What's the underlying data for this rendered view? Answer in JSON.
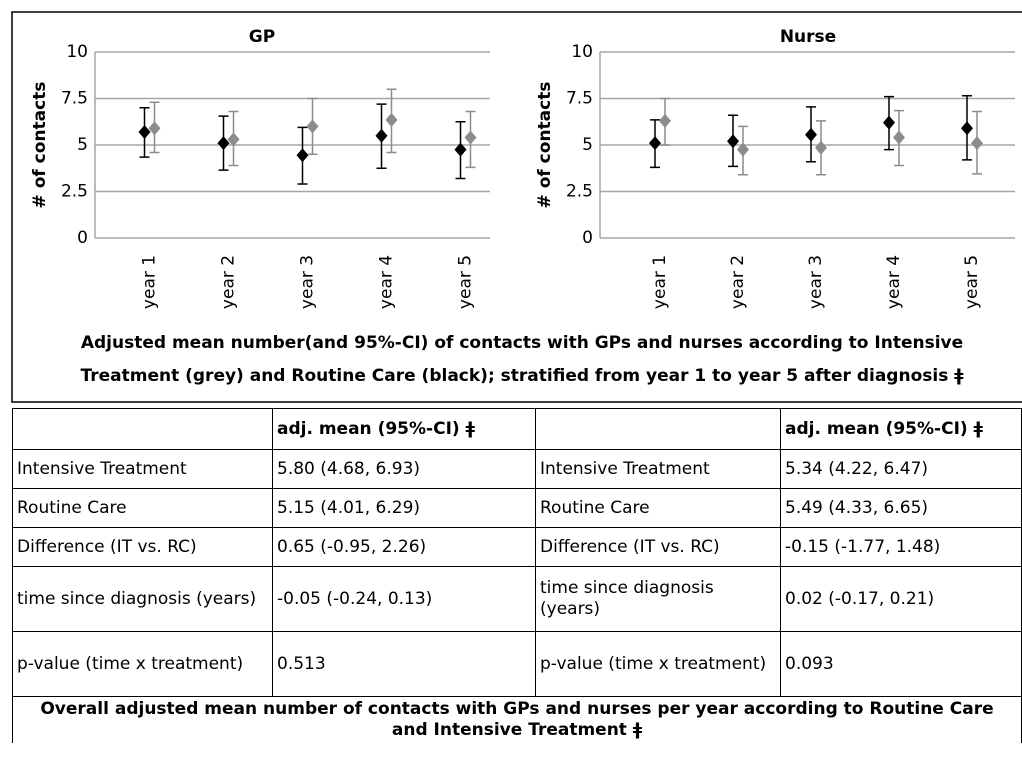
{
  "chart_data": [
    {
      "type": "errorbar",
      "title": "GP",
      "y_label": "# of contacts",
      "categories": [
        "year 1",
        "year 2",
        "year 3",
        "year 4",
        "year 5"
      ],
      "ylim": [
        0,
        10
      ],
      "yticks": [
        0,
        2.5,
        5,
        7.5,
        10
      ],
      "grid": true,
      "series": [
        {
          "color": "#000000",
          "values": [
            5.7,
            5.1,
            4.45,
            5.5,
            4.75
          ],
          "lower": [
            4.35,
            3.65,
            2.9,
            3.75,
            3.2
          ],
          "upper": [
            7.0,
            6.55,
            5.95,
            7.2,
            6.25
          ]
        },
        {
          "color": "#8c8c8c",
          "values": [
            5.9,
            5.3,
            6.0,
            6.35,
            5.4
          ],
          "lower": [
            4.6,
            3.9,
            4.5,
            4.6,
            3.8
          ],
          "upper": [
            7.3,
            6.8,
            7.5,
            8.0,
            6.8
          ]
        }
      ]
    },
    {
      "type": "errorbar",
      "title": "Nurse",
      "y_label": "# of contacts",
      "categories": [
        "year 1",
        "year 2",
        "year 3",
        "year 4",
        "year 5"
      ],
      "ylim": [
        0,
        10
      ],
      "yticks": [
        0,
        2.5,
        5,
        7.5,
        10
      ],
      "grid": true,
      "series": [
        {
          "color": "#000000",
          "values": [
            5.1,
            5.2,
            5.55,
            6.2,
            5.9
          ],
          "lower": [
            3.8,
            3.85,
            4.1,
            4.75,
            4.2
          ],
          "upper": [
            6.35,
            6.6,
            7.05,
            7.6,
            7.65
          ]
        },
        {
          "color": "#8c8c8c",
          "values": [
            6.3,
            4.75,
            4.85,
            5.4,
            5.1
          ],
          "lower": [
            5.0,
            3.4,
            3.4,
            3.9,
            3.45
          ],
          "upper": [
            7.5,
            6.0,
            6.3,
            6.85,
            6.8
          ]
        }
      ]
    }
  ],
  "figure_caption": [
    "Adjusted mean number(and 95%-CI) of contacts with GPs and nurses according to Intensive",
    "Treatment (grey) and Routine Care (black); stratified from year 1 to year 5 after diagnosis ǂ"
  ],
  "table": {
    "header": [
      "adj. mean (95%-CI) ǂ",
      "adj. mean (95%-CI) ǂ"
    ],
    "rows": [
      [
        "Intensive Treatment",
        "5.80 (4.68, 6.93)",
        "Intensive Treatment",
        "5.34 (4.22, 6.47)"
      ],
      [
        "Routine Care",
        "5.15 (4.01, 6.29)",
        "Routine Care",
        "5.49 (4.33, 6.65)"
      ],
      [
        "Difference (IT vs. RC)",
        "0.65 (-0.95, 2.26)",
        "Difference (IT vs. RC)",
        "-0.15 (-1.77, 1.48)"
      ],
      [
        "time since diagnosis (years)",
        "-0.05 (-0.24, 0.13)",
        "time since diagnosis (years)",
        "0.02 (-0.17, 0.21)"
      ],
      [
        "p-value (time x treatment)",
        "0.513",
        "p-value (time x treatment)",
        "0.093"
      ]
    ],
    "caption": [
      "Overall adjusted mean number of contacts with GPs and nurses per year according to Routine Care",
      "and Intensive Treatment ǂ"
    ]
  }
}
